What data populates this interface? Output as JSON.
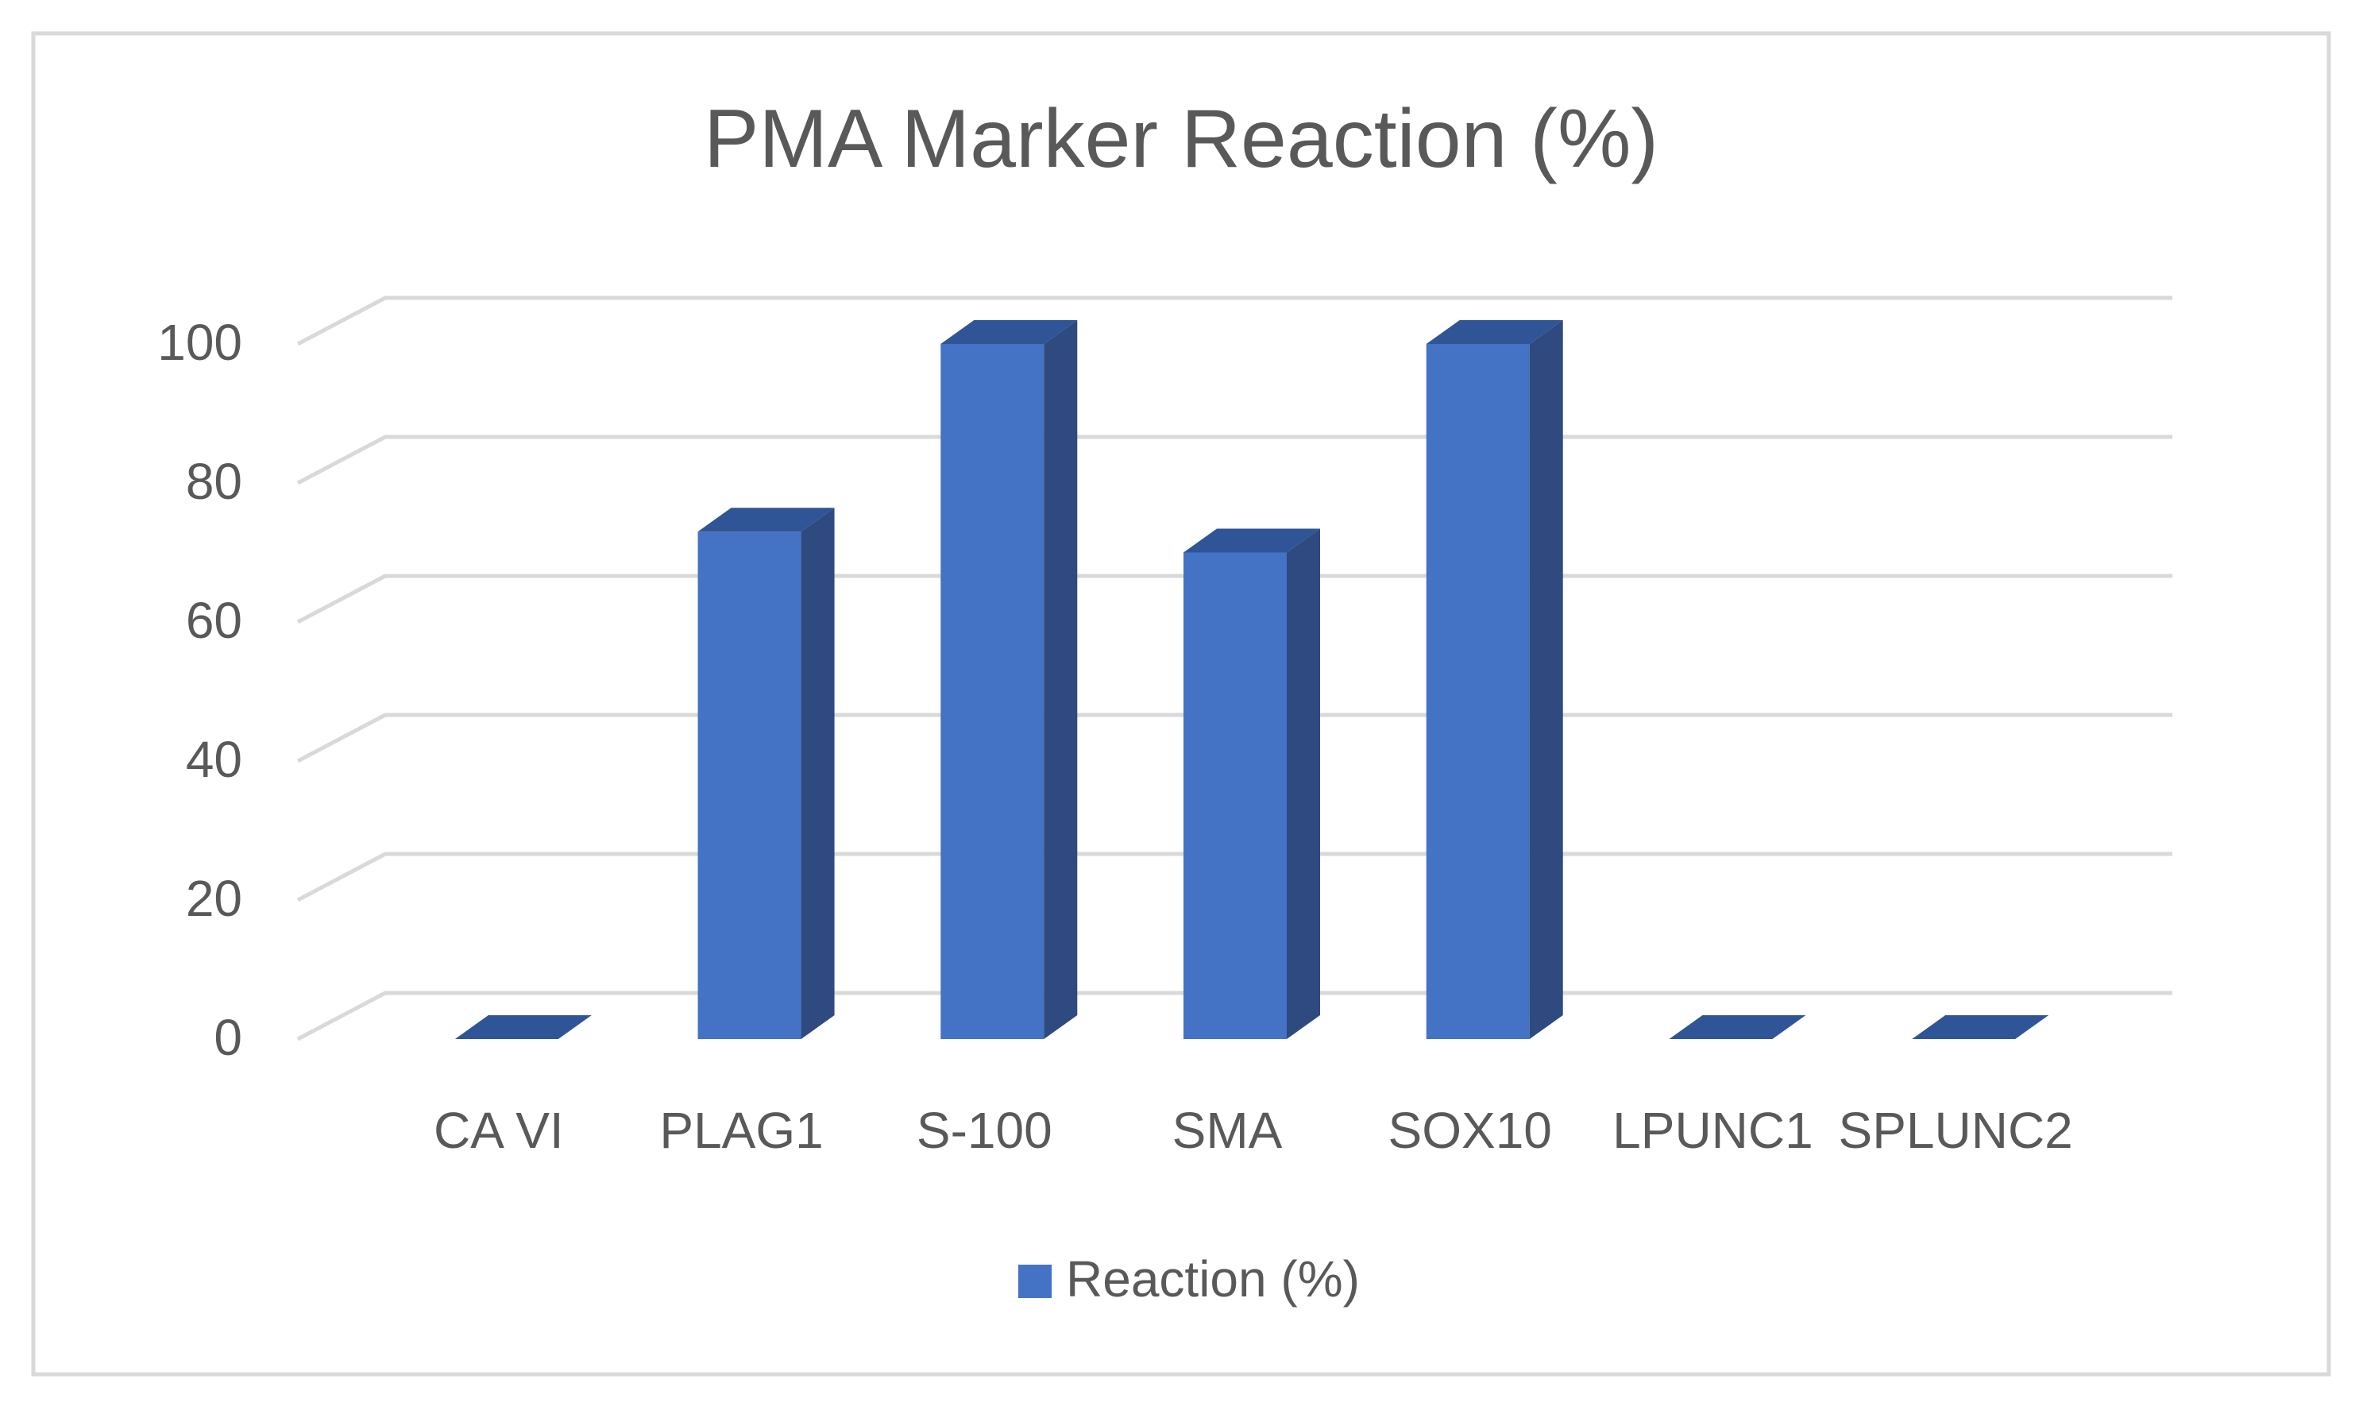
{
  "chart_data": {
    "type": "bar",
    "title": "PMA Marker Reaction (%)",
    "xlabel": "",
    "ylabel": "",
    "categories": [
      "CA VI",
      "PLAG1",
      "S-100",
      "SMA",
      "SOX10",
      "LPUNC1",
      "SPLUNC2"
    ],
    "series": [
      {
        "name": "Reaction (%)",
        "values": [
          0,
          73,
          100,
          70,
          100,
          0,
          0
        ]
      }
    ],
    "ylim": [
      0,
      100
    ],
    "yticks": [
      0,
      20,
      40,
      60,
      80,
      100
    ],
    "grid": true,
    "legend_position": "bottom",
    "style": "3d-column",
    "colors": {
      "bar_front": "#4472C4",
      "bar_side": "#2E4A7E",
      "bar_top": "#2F5597",
      "grid": "#D9D9D9",
      "text": "#595959",
      "border": "#D9D9D9"
    }
  }
}
